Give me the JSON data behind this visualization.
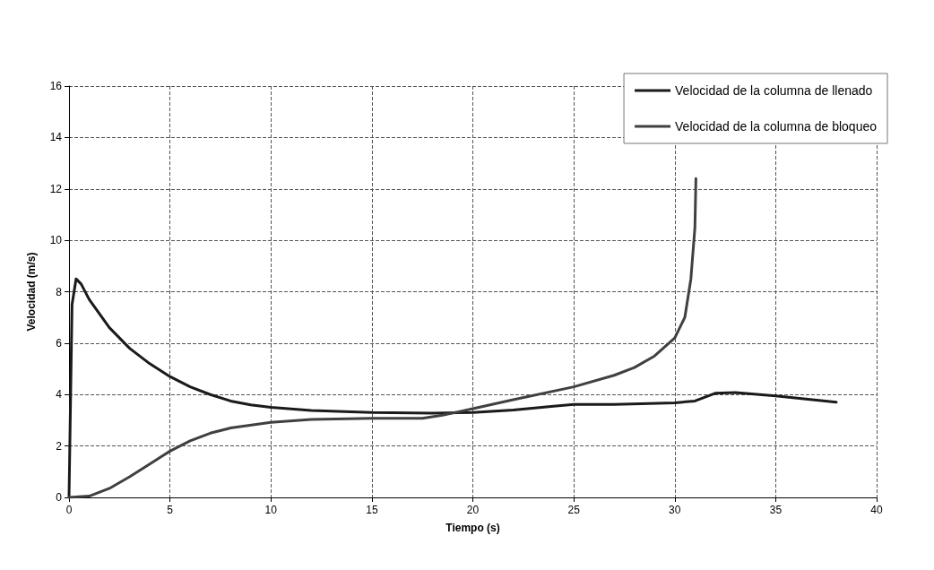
{
  "chart_data": {
    "type": "line",
    "xlabel": "Tiempo (s)",
    "ylabel": "Velocidad (m/s)",
    "xlim": [
      0,
      40
    ],
    "xticks": [
      0,
      5,
      10,
      15,
      20,
      25,
      30,
      35,
      40
    ],
    "ylim": [
      0,
      16
    ],
    "yticks": [
      0,
      2,
      4,
      6,
      8,
      10,
      12,
      14,
      16
    ],
    "grid": true,
    "legend": "top right",
    "marker": "none",
    "line_style": "solid",
    "series": [
      {
        "name": "Velocidad de la columna de llenado",
        "color": "#1a1a1a",
        "x": [
          0,
          0.15,
          0.35,
          0.6,
          1,
          2,
          3,
          4,
          5,
          6,
          7,
          8,
          9,
          10,
          12,
          15,
          18,
          20,
          22,
          24,
          25,
          27,
          30,
          31,
          32,
          33,
          35,
          38
        ],
        "values": [
          0,
          7.5,
          8.5,
          8.3,
          7.7,
          6.6,
          5.8,
          5.2,
          4.7,
          4.3,
          4.0,
          3.75,
          3.6,
          3.5,
          3.38,
          3.3,
          3.28,
          3.3,
          3.4,
          3.55,
          3.62,
          3.62,
          3.68,
          3.75,
          4.05,
          4.08,
          3.95,
          3.7
        ]
      },
      {
        "name": "Velocidad de la columna de bloqueo",
        "color": "#404040",
        "x": [
          0,
          1,
          2,
          3,
          4,
          5,
          6,
          7,
          8,
          10,
          12,
          15,
          17.5,
          18.5,
          20,
          22,
          25,
          27,
          28,
          29,
          30,
          30.5,
          30.8,
          31,
          31.05
        ],
        "values": [
          0,
          0.05,
          0.35,
          0.8,
          1.3,
          1.8,
          2.2,
          2.5,
          2.7,
          2.92,
          3.03,
          3.08,
          3.08,
          3.2,
          3.45,
          3.8,
          4.3,
          4.75,
          5.05,
          5.5,
          6.2,
          7.0,
          8.5,
          10.5,
          12.4
        ]
      }
    ]
  }
}
